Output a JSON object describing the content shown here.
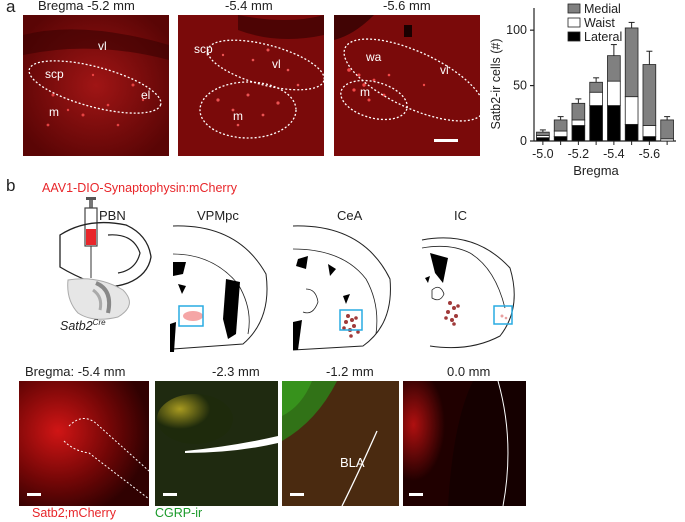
{
  "panel_a": {
    "letter": "a",
    "images": [
      {
        "title": "Bregma -5.2 mm",
        "regions": [
          "vl",
          "scp",
          "el",
          "m"
        ]
      },
      {
        "title": "-5.4 mm",
        "regions": [
          "scp",
          "vl",
          "m"
        ]
      },
      {
        "title": "-5.6 mm",
        "regions": [
          "wa",
          "vl",
          "m"
        ]
      }
    ],
    "colors": {
      "tissue": "#7a0a0a",
      "bright": "#ff4040"
    }
  },
  "chart_data": {
    "type": "bar",
    "stacked": true,
    "x": [
      -5.0,
      -5.1,
      -5.2,
      -5.3,
      -5.4,
      -5.5,
      -5.6,
      -5.7
    ],
    "xtick_labels": [
      "-5.0",
      "-5.2",
      "-5.4",
      "-5.6"
    ],
    "series": [
      {
        "name": "Lateral",
        "color": "#000000",
        "values": [
          3,
          4,
          14,
          32,
          32,
          15,
          4,
          0
        ]
      },
      {
        "name": "Waist",
        "color": "#ffffff",
        "values": [
          2,
          5,
          5,
          12,
          22,
          25,
          10,
          2
        ]
      },
      {
        "name": "Medial",
        "color": "#808080",
        "values": [
          3,
          10,
          15,
          9,
          23,
          62,
          55,
          17
        ]
      }
    ],
    "errors": [
      2,
      3,
      4,
      4,
      10,
      5,
      12,
      3
    ],
    "ylabel": "Satb2-ir cells (#)",
    "xlabel": "Bregma",
    "ylim": [
      0,
      120
    ],
    "yticks": [
      "0",
      "50",
      "100"
    ],
    "legend_position": "top-right"
  },
  "panel_b": {
    "letter": "b",
    "virus": "AAV1-DIO-Synaptophysin:mCherry",
    "virus_color": "#e8262a",
    "injection_site": "PBN",
    "mouse_line": "Satb2",
    "mouse_line_sup": "Cre",
    "targets": [
      "VPMpc",
      "CeA",
      "IC"
    ],
    "box_color": "#29abe2",
    "bottom_images": [
      {
        "title": "Bregma: -5.4 mm"
      },
      {
        "title": "-2.3 mm"
      },
      {
        "title": "-1.2 mm",
        "region": "BLA"
      },
      {
        "title": "0.0 mm"
      }
    ],
    "legend": [
      {
        "label": "Satb2;mCherry",
        "color": "#e8262a"
      },
      {
        "label": "CGRP-ir",
        "color": "#1a9a2a"
      }
    ]
  }
}
